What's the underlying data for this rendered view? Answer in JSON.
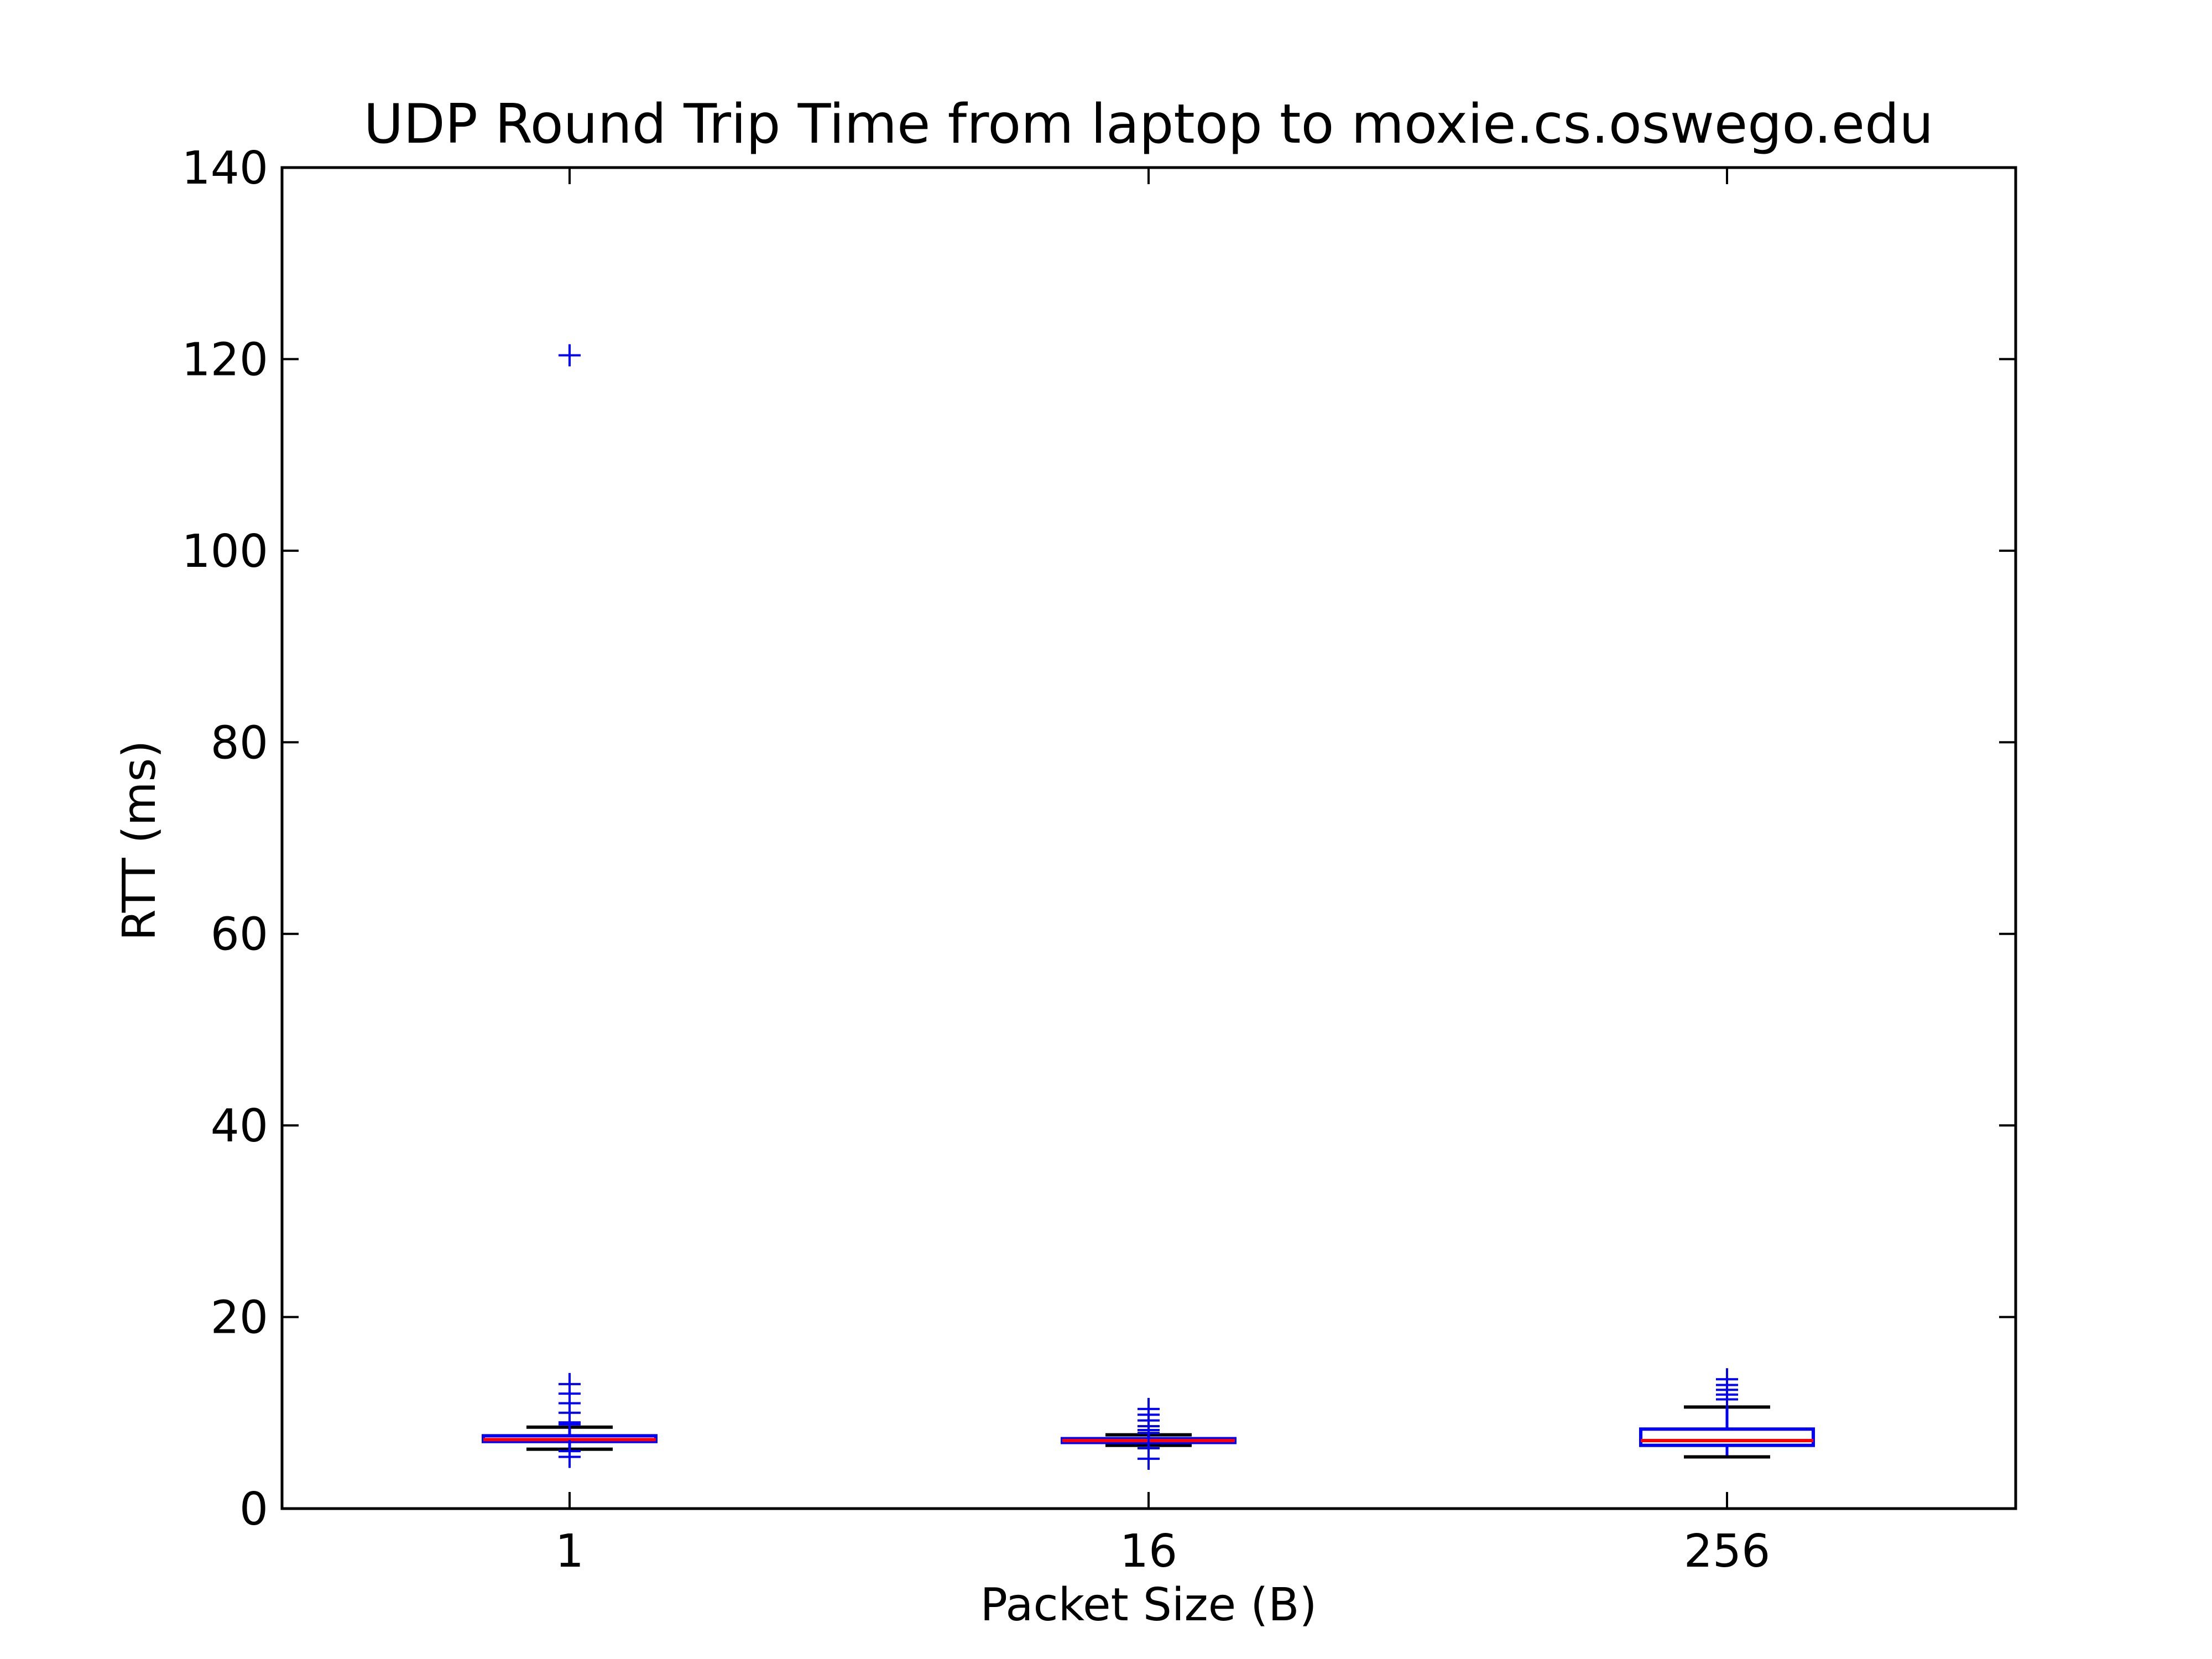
{
  "chart_data": {
    "type": "box",
    "title": "UDP Round Trip Time from laptop to moxie.cs.oswego.edu",
    "xlabel": "Packet Size (B)",
    "ylabel": "RTT (ms)",
    "ylim": [
      0,
      140
    ],
    "yticks": [
      "0",
      "20",
      "40",
      "60",
      "80",
      "100",
      "120",
      "140"
    ],
    "grid": false,
    "categories": [
      "1",
      "16",
      "256"
    ],
    "boxes": [
      {
        "category": "1",
        "whisker_low": 6.2,
        "q1": 7.0,
        "median": 7.2,
        "q3": 7.6,
        "whisker_high": 8.5,
        "outliers": [
          120.4,
          13.0,
          12.0,
          11.0,
          10.0,
          9.0,
          8.8,
          6.0,
          5.4
        ]
      },
      {
        "category": "16",
        "whisker_low": 6.6,
        "q1": 6.9,
        "median": 7.1,
        "q3": 7.3,
        "whisker_high": 7.7,
        "outliers": [
          10.4,
          9.8,
          9.2,
          8.6,
          8.2,
          7.9,
          6.3,
          5.2
        ]
      },
      {
        "category": "256",
        "whisker_low": 5.4,
        "q1": 6.6,
        "median": 7.1,
        "q3": 8.3,
        "whisker_high": 10.6,
        "outliers": [
          13.5,
          12.9,
          12.4,
          11.9,
          11.4
        ]
      }
    ],
    "colors": {
      "box": "#0000ff",
      "median": "#ff0000",
      "whisker_cap": "#000000",
      "flier": "#0000ff",
      "axes": "#000000"
    }
  }
}
